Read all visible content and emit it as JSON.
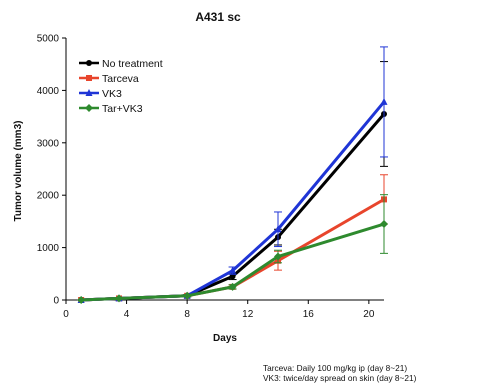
{
  "notes": [
    "Tarceva: Daily 100 mg/kg ip (day 8~21)",
    "VK3: twice/day  spread on skin  (day 8~21)"
  ],
  "chart_data": {
    "type": "line",
    "title": "A431 sc",
    "xlabel": "Days",
    "ylabel": "Tumor volume (mm3)",
    "xlim": [
      0,
      21
    ],
    "ylim": [
      0,
      5000
    ],
    "xticks": [
      0,
      4,
      8,
      12,
      16,
      20
    ],
    "yticks": [
      0,
      1000,
      2000,
      3000,
      4000,
      5000
    ],
    "grid": false,
    "legend_position": "top-left",
    "series": [
      {
        "name": "No treatment",
        "color": "#000000",
        "marker": "circle",
        "x": [
          1,
          3.5,
          8,
          11,
          14,
          21
        ],
        "y": [
          0,
          30,
          80,
          450,
          1200,
          3550
        ],
        "err": [
          0,
          10,
          20,
          60,
          150,
          1000
        ]
      },
      {
        "name": "Tarceva",
        "color": "#e8452c",
        "marker": "square",
        "x": [
          1,
          3.5,
          8,
          11,
          14,
          21
        ],
        "y": [
          0,
          30,
          80,
          250,
          750,
          1920
        ],
        "err": [
          0,
          10,
          20,
          40,
          180,
          470
        ]
      },
      {
        "name": "VK3",
        "color": "#1f35d6",
        "marker": "triangle",
        "x": [
          1,
          3.5,
          8,
          11,
          14,
          21
        ],
        "y": [
          0,
          30,
          80,
          560,
          1350,
          3780
        ],
        "err": [
          0,
          10,
          20,
          70,
          330,
          1050
        ]
      },
      {
        "name": "Tar+VK3",
        "color": "#2e8a2e",
        "marker": "diamond",
        "x": [
          1,
          3.5,
          8,
          11,
          14,
          21
        ],
        "y": [
          0,
          30,
          80,
          250,
          830,
          1450
        ],
        "err": [
          0,
          10,
          20,
          40,
          120,
          560
        ]
      }
    ]
  }
}
